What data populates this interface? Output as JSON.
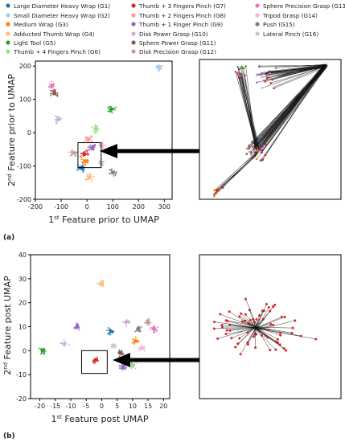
{
  "legend": [
    {
      "label": "Large Diameter Heavy Wrap (G1)",
      "color": "#1f77b4"
    },
    {
      "label": "Small Diameter Heavy Wrap (G2)",
      "color": "#aec7e8"
    },
    {
      "label": "Medium Wrap (G3)",
      "color": "#ff7f0e"
    },
    {
      "label": "Adducted Thumb Wrap (G4)",
      "color": "#ffbb78"
    },
    {
      "label": "Light Tool (G5)",
      "color": "#2ca02c"
    },
    {
      "label": "Thumb + 4 Fingers Pinch (G6)",
      "color": "#98df8a"
    },
    {
      "label": "Thumb + 3 Fingers Pinch (G7)",
      "color": "#d62728"
    },
    {
      "label": "Thumb + 2 Fingers Pinch (G8)",
      "color": "#ff9896"
    },
    {
      "label": "Thumb + 1 Finger Pinch (G9)",
      "color": "#9467bd"
    },
    {
      "label": "Disk Power Grasp (G10)",
      "color": "#c5b0d5"
    },
    {
      "label": "Sphere Power Grasp (G11)",
      "color": "#8c564b"
    },
    {
      "label": "Disk Precision Grasp (G12)",
      "color": "#c49c94"
    },
    {
      "label": "Sphere Precision Grasp (G13)",
      "color": "#e377c2"
    },
    {
      "label": "Tripod Grasp (G14)",
      "color": "#f7b6d2"
    },
    {
      "label": "Push (G15)",
      "color": "#7f7f7f"
    },
    {
      "label": "Lateral Pinch (G16)",
      "color": "#c7c7c7"
    }
  ],
  "chart_data": [
    {
      "type": "scatter",
      "panel_label": "(a)",
      "xlabel": {
        "prefix": "1",
        "sup": "st",
        "rest": " Feature prior to UMAP"
      },
      "ylabel": {
        "prefix": "2",
        "sup": "nd",
        "rest": " Feature prior to UMAP"
      },
      "xlim": [
        -200,
        330
      ],
      "ylim": [
        -200,
        215
      ],
      "xticks": [
        -200,
        -100,
        0,
        100,
        200,
        300
      ],
      "yticks": [
        -200,
        -100,
        0,
        100,
        200
      ],
      "clusters": [
        {
          "group": "G13",
          "x": -135,
          "y": 140
        },
        {
          "group": "G11",
          "x": -125,
          "y": 120
        },
        {
          "group": "G10",
          "x": -110,
          "y": 40
        },
        {
          "group": "G5",
          "x": 95,
          "y": 70
        },
        {
          "group": "G6",
          "x": 35,
          "y": 10
        },
        {
          "group": "G2",
          "x": 280,
          "y": 195
        },
        {
          "group": "G1",
          "x": -20,
          "y": -105
        },
        {
          "group": "G3",
          "x": -5,
          "y": -85
        },
        {
          "group": "G4",
          "x": 10,
          "y": -135
        },
        {
          "group": "G7",
          "x": -10,
          "y": -65
        },
        {
          "group": "G9",
          "x": 20,
          "y": -45
        },
        {
          "group": "G8",
          "x": 5,
          "y": -20
        },
        {
          "group": "G15",
          "x": 100,
          "y": -120
        },
        {
          "group": "G14",
          "x": 60,
          "y": -40
        },
        {
          "group": "G12",
          "x": -50,
          "y": -60
        },
        {
          "group": "G16",
          "x": 55,
          "y": -90
        }
      ],
      "zoom_box": {
        "x0": -35,
        "x1": 55,
        "y0": -105,
        "y1": -30
      }
    },
    {
      "type": "scatter",
      "panel_label": "(b)",
      "xlabel": {
        "prefix": "1",
        "sup": "st",
        "rest": " Feature post UMAP"
      },
      "ylabel": {
        "prefix": "2",
        "sup": "nd",
        "rest": " Feature post UMAP"
      },
      "xlim": [
        -23,
        22
      ],
      "ylim": [
        -20,
        40
      ],
      "xticks": [
        -20,
        -15,
        -10,
        -5,
        0,
        5,
        10,
        15,
        20
      ],
      "yticks": [
        -20,
        -10,
        0,
        10,
        20,
        30,
        40
      ],
      "clusters": [
        {
          "group": "G4",
          "x": 0,
          "y": 28
        },
        {
          "group": "G9",
          "x": -8,
          "y": 10
        },
        {
          "group": "G1",
          "x": 3,
          "y": 8
        },
        {
          "group": "G10",
          "x": 8,
          "y": 12
        },
        {
          "group": "G15",
          "x": 12,
          "y": 9
        },
        {
          "group": "G13",
          "x": 17,
          "y": 9
        },
        {
          "group": "G12",
          "x": 15,
          "y": 12
        },
        {
          "group": "G2",
          "x": -12,
          "y": 3
        },
        {
          "group": "G5",
          "x": -19,
          "y": 0
        },
        {
          "group": "G6",
          "x": 10,
          "y": -6
        },
        {
          "group": "G11",
          "x": 6,
          "y": -1
        },
        {
          "group": "G9",
          "x": 7,
          "y": -7
        },
        {
          "group": "G7",
          "x": -2,
          "y": -4
        },
        {
          "group": "G3",
          "x": 11,
          "y": 4
        },
        {
          "group": "G14",
          "x": 13,
          "y": 1
        },
        {
          "group": "G16",
          "x": 4,
          "y": 2
        }
      ],
      "zoom_box": {
        "x0": -6.5,
        "x1": 1.8,
        "y0": -9.5,
        "y1": 0
      }
    }
  ]
}
